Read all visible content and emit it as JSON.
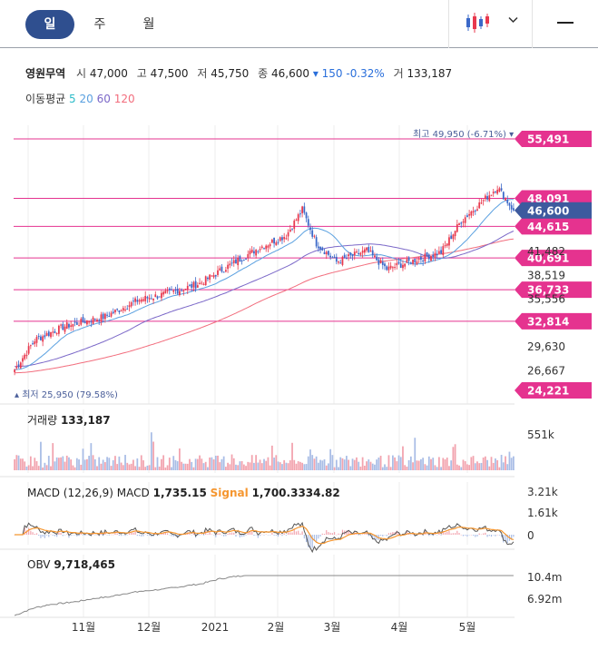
{
  "tabs": [
    {
      "label": "일",
      "active": true
    },
    {
      "label": "주",
      "active": false
    },
    {
      "label": "월",
      "active": false
    }
  ],
  "toolbar": {
    "chart_type_icon": "candlestick-icon",
    "dropdown_icon": "chevron-down-icon",
    "menu_icon": "menu-icon"
  },
  "quote": {
    "name": "영원무역",
    "open_label": "시",
    "open": "47,000",
    "high_label": "고",
    "high": "47,500",
    "low_label": "저",
    "low": "45,750",
    "close_label": "종",
    "close": "46,600",
    "change": "▾ 150 -0.32%",
    "volume_label": "거",
    "volume": "133,187"
  },
  "moving_average": {
    "label": "이동평균",
    "periods": [
      {
        "label": "5",
        "color": "#2dbcc9"
      },
      {
        "label": "20",
        "color": "#5aa0e0"
      },
      {
        "label": "60",
        "color": "#7b68c8"
      },
      {
        "label": "120",
        "color": "#f26d7d"
      }
    ]
  },
  "colors": {
    "up": "#e8394e",
    "down": "#3a68c8",
    "level": "#e5338f",
    "current": "#3d5a9e"
  },
  "chart_data": [
    {
      "type": "candlestick",
      "x_labels": [
        "11월",
        "12월",
        "2021",
        "2월",
        "3월",
        "4월",
        "5월"
      ],
      "y_ticks": [
        "41,482",
        "38,519",
        "35,556",
        "29,630",
        "26,667"
      ],
      "ylim": [
        24221,
        55491
      ],
      "price_levels": [
        "55,491",
        "48,091",
        "44,615",
        "40,691",
        "36,733",
        "32,814",
        "24,221"
      ],
      "current_price": "46,600",
      "high_marker": {
        "label": "최고",
        "value": "49,950 (-6.71%)"
      },
      "low_marker": {
        "label": "최저",
        "value": "25,950 (79.58%)"
      },
      "close_anchors": [
        [
          0,
          26800
        ],
        [
          10,
          30500
        ],
        [
          25,
          32200
        ],
        [
          45,
          33400
        ],
        [
          62,
          35500
        ],
        [
          75,
          36200
        ],
        [
          92,
          37500
        ],
        [
          105,
          39500
        ],
        [
          122,
          42000
        ],
        [
          135,
          43500
        ],
        [
          143,
          46700
        ],
        [
          150,
          42500
        ],
        [
          160,
          40200
        ],
        [
          175,
          41600
        ],
        [
          185,
          39300
        ],
        [
          200,
          40500
        ],
        [
          212,
          41400
        ],
        [
          222,
          45300
        ],
        [
          232,
          47600
        ],
        [
          240,
          49500
        ],
        [
          248,
          46600
        ]
      ],
      "ma_start": {
        "ma60": 27200,
        "ma120": 26400
      }
    },
    {
      "type": "bar",
      "label": "거래량",
      "value": "133,187",
      "y_ticks": [
        "551k"
      ]
    },
    {
      "type": "line",
      "label": "MACD (12,26,9)",
      "series": [
        {
          "name": "MACD",
          "value": "1,735.15",
          "color": "#555555"
        },
        {
          "name": "Signal",
          "value": "1,700.3334.82",
          "color": "#f5962f"
        }
      ],
      "y_ticks": [
        "3.21k",
        "1.61k",
        "0"
      ]
    },
    {
      "type": "line",
      "label": "OBV",
      "value": "9,718,465",
      "y_ticks": [
        "10.4m",
        "6.92m"
      ]
    }
  ]
}
